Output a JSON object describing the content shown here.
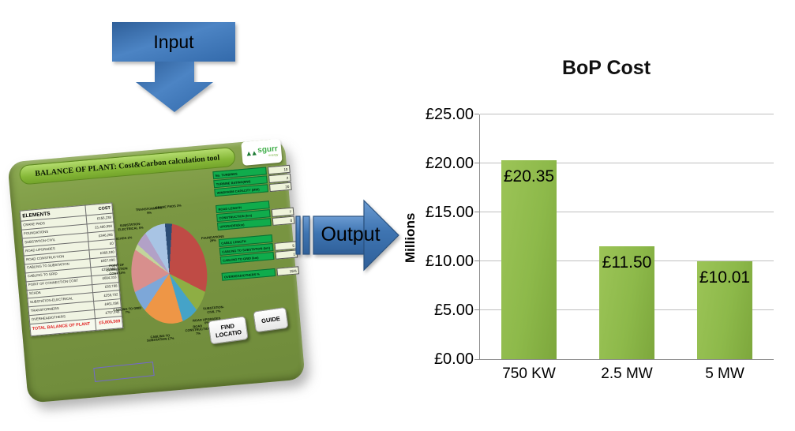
{
  "flow": {
    "input_label": "Input",
    "output_label": "Output",
    "arrow_color": "#3f76b4"
  },
  "panel": {
    "title": "BALANCE OF PLANT: Cost&Carbon calculation tool",
    "logo": {
      "name": "sgurr",
      "sub": "energy",
      "icon": "mountain-triangles-icon",
      "triangles": "▲▲"
    },
    "table": {
      "headers": [
        "ELEMENTS",
        "COST"
      ],
      "rows": [
        [
          "CRANE PADS",
          "£156,238"
        ],
        [
          "FOUNDATIONS",
          "£1,480,994"
        ],
        [
          "SUBSTATION-CIVIL",
          "£346,265"
        ],
        [
          "ROAD UPGRADES",
          "£0"
        ],
        [
          "ROAD CONSTRUCTION",
          "£369,180"
        ],
        [
          "CABLING TO SUBSTATION",
          "£857,090"
        ],
        [
          "CABLING TO GRID",
          "£353,562"
        ],
        [
          "POINT OF CONNECTION COST",
          "£684,318"
        ],
        [
          "SCADA",
          "£83,788"
        ],
        [
          "SUBSTATION-ELECTRICAL",
          "£255,792"
        ],
        [
          "TRANSFORMERS",
          "£461,096"
        ],
        [
          "OVERHEAD/OTHERS",
          "£757,248"
        ]
      ],
      "total_label": "TOTAL BALANCE OF PLANT",
      "total_value": "£5,805,569"
    },
    "inputs": [
      {
        "rows": [
          [
            "No. TURBINES",
            "10"
          ],
          [
            "TURBINE RATING(MW)",
            "2"
          ],
          [
            "WINDFARM CAPACITY (MW)",
            "20"
          ]
        ]
      },
      {
        "header": "ROAD LENGTH",
        "rows": [
          [
            "CONSTRUCTION (km)",
            "7"
          ],
          [
            "UPGRADES(km)",
            "0"
          ]
        ]
      },
      {
        "header": "CABLE LENGTH",
        "rows": [
          [
            "CABLING TO SUBSTATION (km)",
            "5"
          ],
          [
            "CABLING TO GRID (km)",
            "1"
          ]
        ]
      },
      {
        "rows": [
          [
            "OVERHEAD/OTHERS %",
            "15%"
          ]
        ]
      }
    ],
    "buttons": {
      "find_location": "FIND LOCATIO",
      "guide": "GUIDE"
    },
    "colors": {
      "panel_olive": "#75913f",
      "banner_green": "#8fc243",
      "field_green": "#10ac4c",
      "total_red": "#e01f1f"
    }
  },
  "chart_data": [
    {
      "type": "bar",
      "title": "BoP Cost",
      "categories": [
        "750 KW",
        "2.5 MW",
        "5 MW"
      ],
      "values": [
        20.35,
        11.5,
        10.01
      ],
      "data_labels": [
        "£20.35",
        "£11.50",
        "£10.01"
      ],
      "xlabel": "",
      "ylabel": "Millions",
      "ylim": [
        0,
        25
      ],
      "ytick_step": 5,
      "ytick_labels": [
        "£0.00",
        "£5.00",
        "£10.00",
        "£15.00",
        "£20.00",
        "£25.00"
      ],
      "grid": true,
      "legend": false,
      "bar_color": "#8db94a"
    },
    {
      "type": "pie",
      "title": "",
      "labels": [
        "CRANE PADS",
        "FOUNDATIONS",
        "SUBSTATION-CIVIL",
        "ROAD UPGRADES",
        "ROAD CONSTRUCTION",
        "CABLING TO SUBSTATION",
        "CABLING TO GRID",
        "POINT OF CONNECTION COST",
        "SCADA",
        "SUBSTATION-ELECTRICAL",
        "TRANSFORMERS"
      ],
      "values": [
        3,
        29,
        7,
        0,
        7,
        17,
        7,
        14,
        2,
        5,
        9
      ],
      "unit": "%",
      "colors": [
        "#2c4d75",
        "#bf4b45",
        "#8eae44",
        "#8064a2",
        "#45a3c8",
        "#ee9646",
        "#7da7d8",
        "#d88f8d",
        "#c2d59b",
        "#b2a1c7",
        "#a8c4e4"
      ],
      "legend_position": "none"
    }
  ]
}
